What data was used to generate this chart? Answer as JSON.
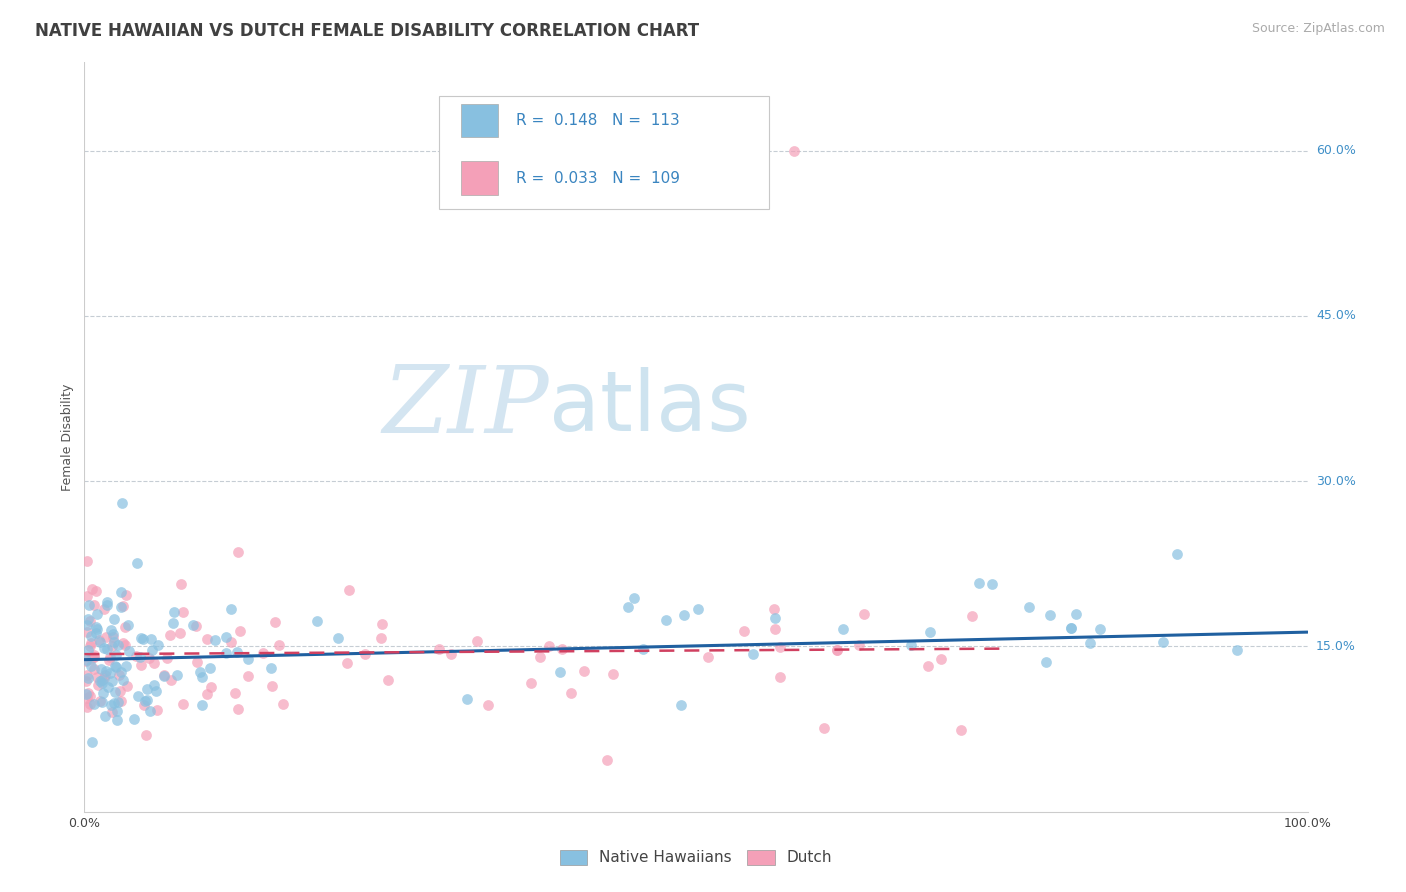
{
  "title": "NATIVE HAWAIIAN VS DUTCH FEMALE DISABILITY CORRELATION CHART",
  "source_text": "Source: ZipAtlas.com",
  "ylabel": "Female Disability",
  "xlim": [
    0,
    1.0
  ],
  "ylim": [
    0.0,
    0.68
  ],
  "yticks": [
    0.15,
    0.3,
    0.45,
    0.6
  ],
  "yticklabels": [
    "15.0%",
    "30.0%",
    "45.0%",
    "60.0%"
  ],
  "legend_r1": "R =  0.148",
  "legend_n1": "N =  113",
  "legend_r2": "R =  0.033",
  "legend_n2": "N =  109",
  "color_hawaiian": "#88c0e0",
  "color_dutch": "#f4a0b8",
  "color_line_hawaiian": "#2060a0",
  "color_line_dutch": "#d04060",
  "watermark_zip": "ZIP",
  "watermark_atlas": "atlas",
  "background_color": "#ffffff",
  "grid_color": "#c0c8d0",
  "title_fontsize": 12,
  "axis_label_fontsize": 9,
  "tick_fontsize": 9,
  "legend_fontsize": 11,
  "source_fontsize": 9,
  "line_hw_x0": 0.0,
  "line_hw_y0": 0.138,
  "line_hw_x1": 1.0,
  "line_hw_y1": 0.163,
  "line_du_x0": 0.0,
  "line_du_y0": 0.143,
  "line_du_x1": 0.75,
  "line_du_y1": 0.148
}
